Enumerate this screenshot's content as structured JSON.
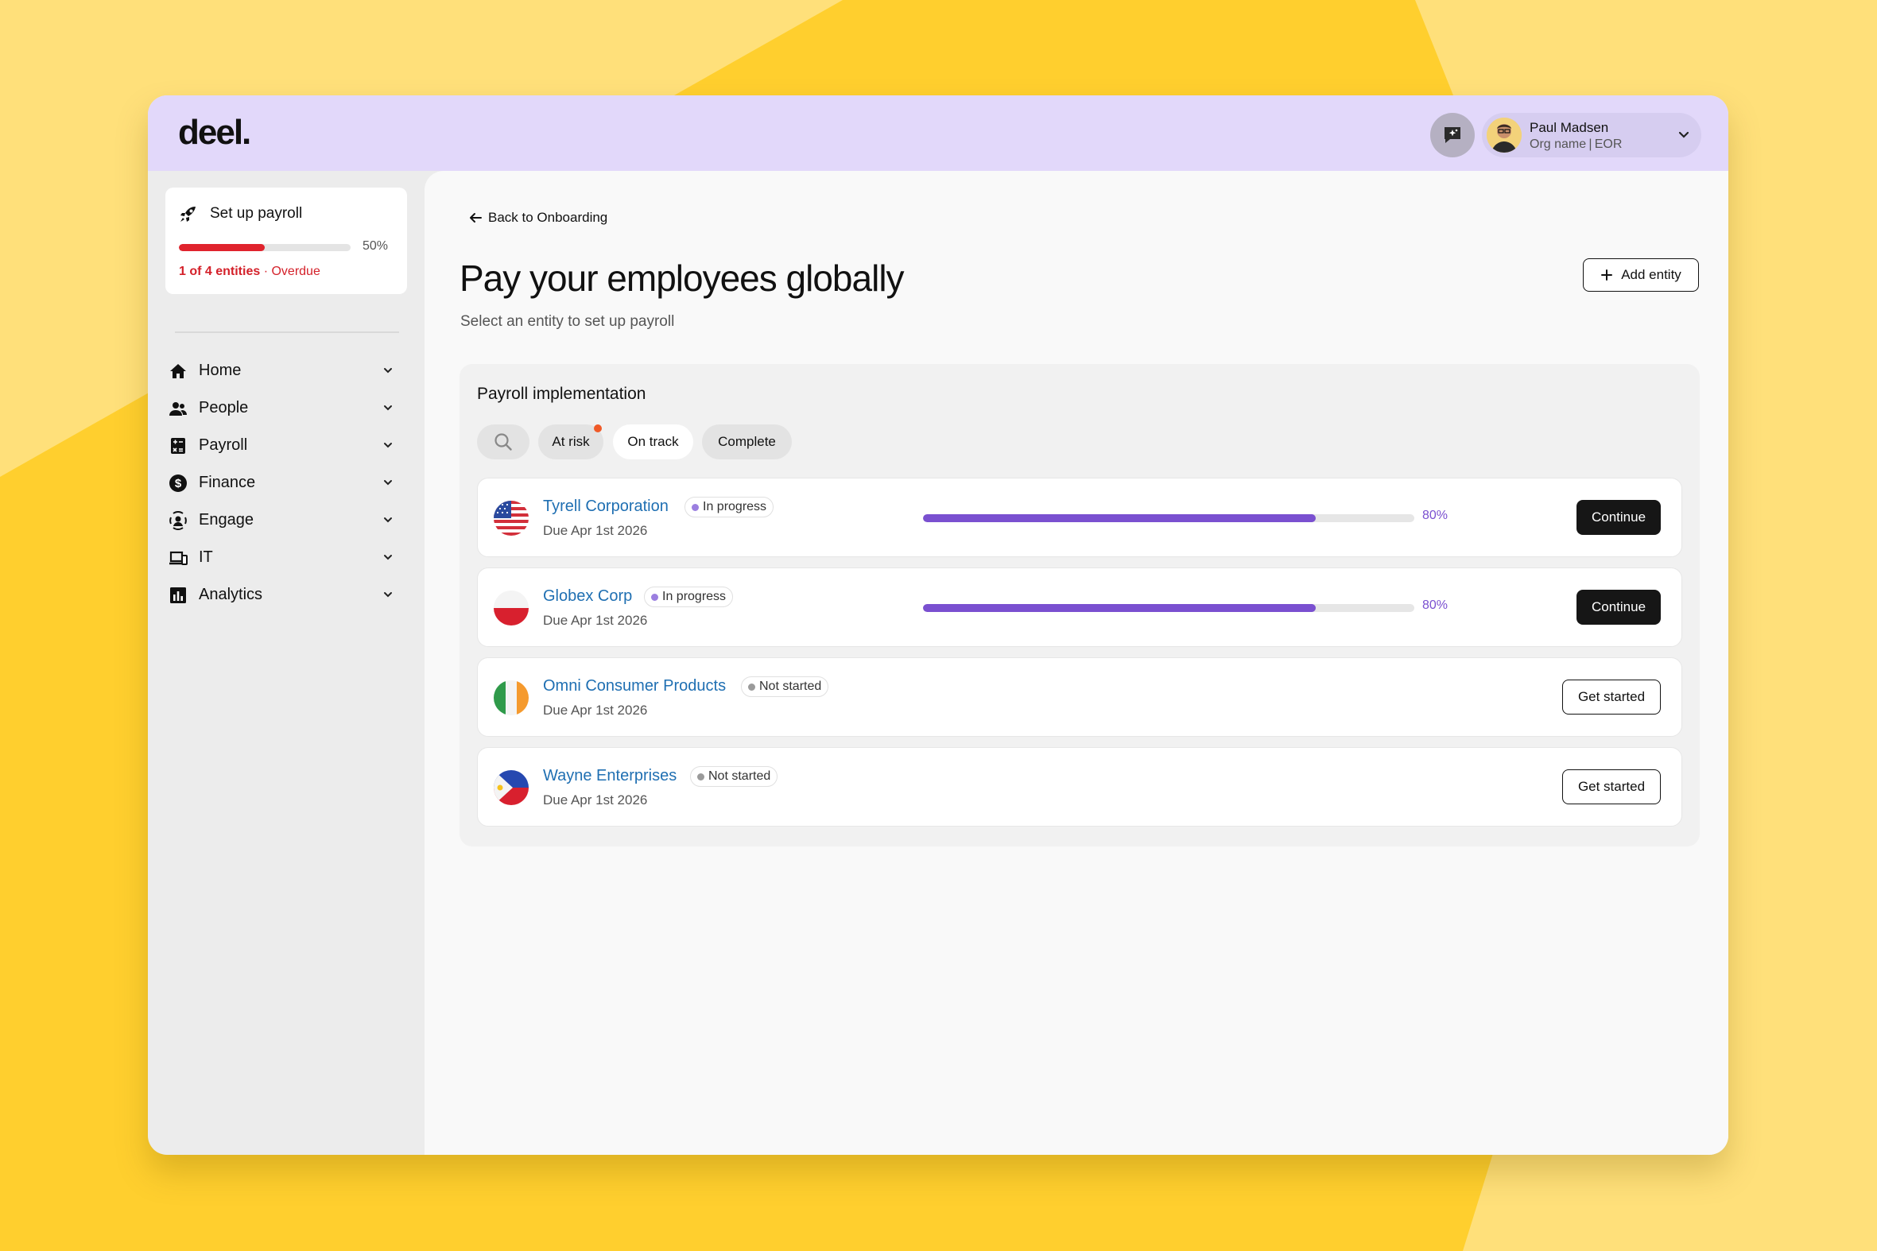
{
  "brand": {
    "logo": "deel.",
    "accent_color": "#7a50d0",
    "topbar_color": "#e2d8fa"
  },
  "user": {
    "name": "Paul Madsen",
    "org": "Org name | EOR"
  },
  "setup_card": {
    "title": "Set up payroll",
    "progress_percent": 50,
    "progress_label": "50%",
    "entities_text": "1 of 4 entities",
    "separator": "·",
    "overdue_text": "Overdue"
  },
  "nav": [
    {
      "label": "Home",
      "icon": "home-icon"
    },
    {
      "label": "People",
      "icon": "people-icon"
    },
    {
      "label": "Payroll",
      "icon": "payroll-icon"
    },
    {
      "label": "Finance",
      "icon": "finance-icon"
    },
    {
      "label": "Engage",
      "icon": "engage-icon"
    },
    {
      "label": "IT",
      "icon": "it-icon"
    },
    {
      "label": "Analytics",
      "icon": "analytics-icon"
    }
  ],
  "main": {
    "back_label": "Back to Onboarding",
    "title": "Pay your employees globally",
    "subtitle": "Select an entity to set up payroll",
    "add_entity_label": "Add entity"
  },
  "panel": {
    "title": "Payroll implementation",
    "filters": [
      {
        "label": "At risk",
        "active": false,
        "has_dot": true
      },
      {
        "label": "On track",
        "active": true,
        "has_dot": false
      },
      {
        "label": "Complete",
        "active": false,
        "has_dot": false
      }
    ]
  },
  "entities": [
    {
      "name": "Tyrell Corporation",
      "status": "In progress",
      "status_color": "#9b7fe0",
      "due": "Due Apr 1st 2026",
      "progress_percent": 80,
      "progress_label": "80%",
      "action": "Continue",
      "flag": "us-flag-icon"
    },
    {
      "name": "Globex Corp",
      "status": "In progress",
      "status_color": "#9b7fe0",
      "due": "Due Apr 1st 2026",
      "progress_percent": 80,
      "progress_label": "80%",
      "action": "Continue",
      "flag": "poland-flag-icon"
    },
    {
      "name": "Omni Consumer Products",
      "status": "Not started",
      "status_color": "#9a9a9a",
      "due": "Due Apr 1st 2026",
      "progress_percent": null,
      "progress_label": "",
      "action": "Get started",
      "flag": "ireland-flag-icon"
    },
    {
      "name": "Wayne Enterprises",
      "status": "Not started",
      "status_color": "#9a9a9a",
      "due": "Due Apr 1st 2026",
      "progress_percent": null,
      "progress_label": "",
      "action": "Get started",
      "flag": "philippines-flag-icon"
    }
  ]
}
